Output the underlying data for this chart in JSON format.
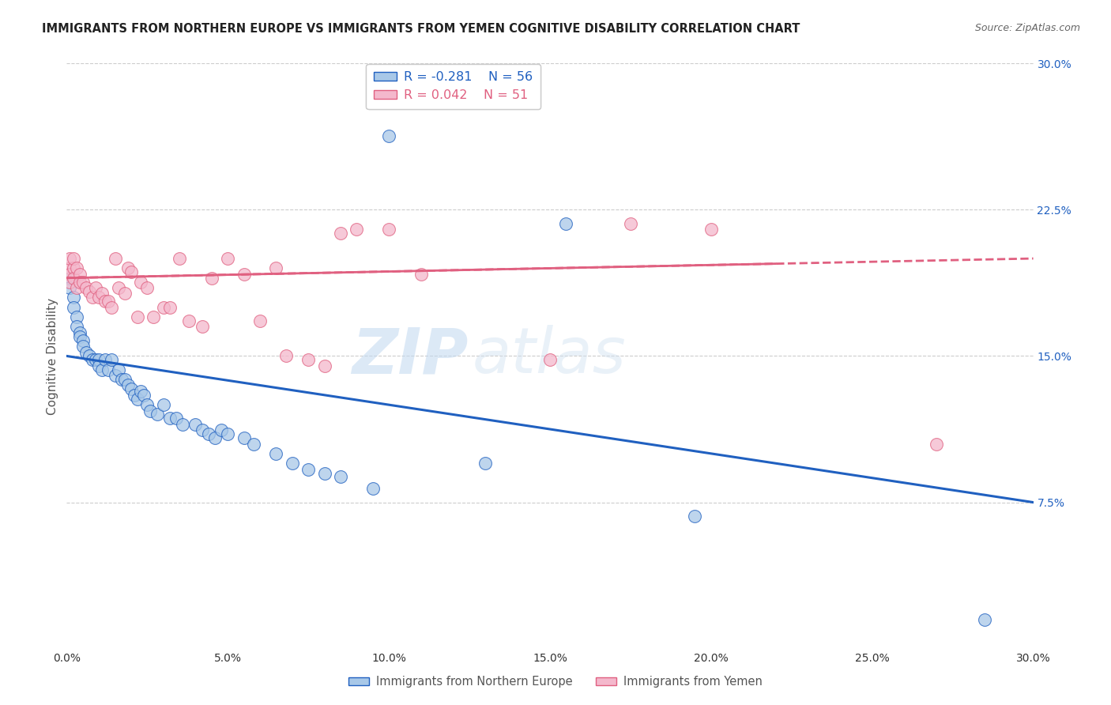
{
  "title": "IMMIGRANTS FROM NORTHERN EUROPE VS IMMIGRANTS FROM YEMEN COGNITIVE DISABILITY CORRELATION CHART",
  "source": "Source: ZipAtlas.com",
  "ylabel": "Cognitive Disability",
  "xlim": [
    0.0,
    0.3
  ],
  "ylim": [
    0.0,
    0.3
  ],
  "xticks": [
    0.0,
    0.05,
    0.1,
    0.15,
    0.2,
    0.25,
    0.3
  ],
  "yticks": [
    0.075,
    0.15,
    0.225,
    0.3
  ],
  "ytick_labels": [
    "7.5%",
    "15.0%",
    "22.5%",
    "30.0%"
  ],
  "xtick_labels": [
    "0.0%",
    "5.0%",
    "10.0%",
    "15.0%",
    "20.0%",
    "25.0%",
    "30.0%"
  ],
  "legend_label1": "Immigrants from Northern Europe",
  "legend_label2": "Immigrants from Yemen",
  "R1": -0.281,
  "N1": 56,
  "R2": 0.042,
  "N2": 51,
  "color_blue": "#a8c8e8",
  "color_pink": "#f4b8cc",
  "line_color_blue": "#2060c0",
  "line_color_pink": "#e06080",
  "watermark_zip": "ZIP",
  "watermark_atlas": "atlas",
  "blue_line_start_y": 0.15,
  "blue_line_end_y": 0.075,
  "pink_line_start_y": 0.19,
  "pink_line_end_y": 0.2,
  "blue_x": [
    0.001,
    0.001,
    0.002,
    0.002,
    0.003,
    0.003,
    0.004,
    0.004,
    0.005,
    0.005,
    0.006,
    0.007,
    0.008,
    0.009,
    0.01,
    0.01,
    0.011,
    0.012,
    0.013,
    0.014,
    0.015,
    0.016,
    0.017,
    0.018,
    0.019,
    0.02,
    0.021,
    0.022,
    0.023,
    0.024,
    0.025,
    0.026,
    0.028,
    0.03,
    0.032,
    0.034,
    0.036,
    0.04,
    0.042,
    0.044,
    0.046,
    0.048,
    0.05,
    0.055,
    0.058,
    0.065,
    0.07,
    0.075,
    0.08,
    0.085,
    0.095,
    0.1,
    0.13,
    0.155,
    0.195,
    0.285
  ],
  "blue_y": [
    0.19,
    0.185,
    0.18,
    0.175,
    0.17,
    0.165,
    0.162,
    0.16,
    0.158,
    0.155,
    0.152,
    0.15,
    0.148,
    0.148,
    0.148,
    0.145,
    0.143,
    0.148,
    0.143,
    0.148,
    0.14,
    0.143,
    0.138,
    0.138,
    0.135,
    0.133,
    0.13,
    0.128,
    0.132,
    0.13,
    0.125,
    0.122,
    0.12,
    0.125,
    0.118,
    0.118,
    0.115,
    0.115,
    0.112,
    0.11,
    0.108,
    0.112,
    0.11,
    0.108,
    0.105,
    0.1,
    0.095,
    0.092,
    0.09,
    0.088,
    0.082,
    0.263,
    0.095,
    0.218,
    0.068,
    0.015
  ],
  "pink_x": [
    0.001,
    0.001,
    0.001,
    0.001,
    0.002,
    0.002,
    0.002,
    0.003,
    0.003,
    0.004,
    0.004,
    0.005,
    0.006,
    0.007,
    0.008,
    0.009,
    0.01,
    0.011,
    0.012,
    0.013,
    0.014,
    0.015,
    0.016,
    0.018,
    0.019,
    0.02,
    0.022,
    0.023,
    0.025,
    0.027,
    0.03,
    0.032,
    0.035,
    0.038,
    0.042,
    0.045,
    0.05,
    0.055,
    0.06,
    0.065,
    0.068,
    0.075,
    0.08,
    0.085,
    0.09,
    0.1,
    0.11,
    0.15,
    0.175,
    0.2,
    0.27
  ],
  "pink_y": [
    0.195,
    0.192,
    0.188,
    0.2,
    0.195,
    0.19,
    0.2,
    0.195,
    0.185,
    0.192,
    0.188,
    0.188,
    0.185,
    0.183,
    0.18,
    0.185,
    0.18,
    0.182,
    0.178,
    0.178,
    0.175,
    0.2,
    0.185,
    0.182,
    0.195,
    0.193,
    0.17,
    0.188,
    0.185,
    0.17,
    0.175,
    0.175,
    0.2,
    0.168,
    0.165,
    0.19,
    0.2,
    0.192,
    0.168,
    0.195,
    0.15,
    0.148,
    0.145,
    0.213,
    0.215,
    0.215,
    0.192,
    0.148,
    0.218,
    0.215,
    0.105
  ]
}
